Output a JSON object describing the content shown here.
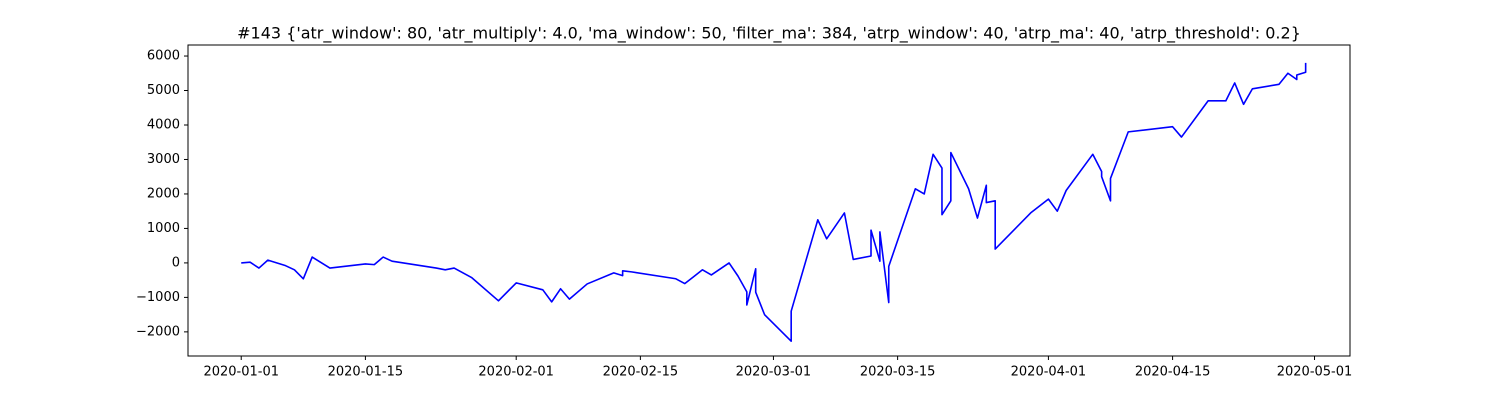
{
  "chart_data": {
    "type": "line",
    "title": "#143 {'atr_window': 80, 'atr_multiply': 4.0, 'ma_window': 50, 'filter_ma': 384, 'atrp_window': 40, 'atrp_ma': 40, 'atrp_threshold': 0.2}",
    "x": [
      "2020-01-01",
      "2020-01-02",
      "2020-01-03",
      "2020-01-04",
      "2020-01-06",
      "2020-01-07",
      "2020-01-08",
      "2020-01-09",
      "2020-01-11",
      "2020-01-15",
      "2020-01-16",
      "2020-01-17",
      "2020-01-18",
      "2020-01-23",
      "2020-01-24",
      "2020-01-25",
      "2020-01-27",
      "2020-01-30",
      "2020-02-01",
      "2020-02-04",
      "2020-02-05",
      "2020-02-06",
      "2020-02-07",
      "2020-02-09",
      "2020-02-12",
      "2020-02-13",
      "2020-02-13",
      "2020-02-14",
      "2020-02-19",
      "2020-02-20",
      "2020-02-21",
      "2020-02-22",
      "2020-02-23",
      "2020-02-25",
      "2020-02-26",
      "2020-02-27",
      "2020-02-27",
      "2020-02-28",
      "2020-02-28",
      "2020-02-29",
      "2020-03-03",
      "2020-03-03",
      "2020-03-06",
      "2020-03-07",
      "2020-03-09",
      "2020-03-10",
      "2020-03-12",
      "2020-03-12",
      "2020-03-13",
      "2020-03-13",
      "2020-03-14",
      "2020-03-14",
      "2020-03-17",
      "2020-03-18",
      "2020-03-19",
      "2020-03-20",
      "2020-03-20",
      "2020-03-21",
      "2020-03-21",
      "2020-03-23",
      "2020-03-24",
      "2020-03-25",
      "2020-03-25",
      "2020-03-26",
      "2020-03-26",
      "2020-03-30",
      "2020-04-01",
      "2020-04-02",
      "2020-04-03",
      "2020-04-06",
      "2020-04-07",
      "2020-04-07",
      "2020-04-08",
      "2020-04-08",
      "2020-04-10",
      "2020-04-15",
      "2020-04-16",
      "2020-04-19",
      "2020-04-21",
      "2020-04-22",
      "2020-04-23",
      "2020-04-24",
      "2020-04-27",
      "2020-04-28",
      "2020-04-29",
      "2020-04-29",
      "2020-04-30",
      "2020-04-30"
    ],
    "series": [
      {
        "color": "#0000ff",
        "values": [
          0,
          20,
          -150,
          80,
          -80,
          -200,
          -460,
          170,
          -150,
          -30,
          -50,
          170,
          50,
          -150,
          -200,
          -150,
          -430,
          -1100,
          -580,
          -780,
          -1130,
          -750,
          -1050,
          -610,
          -290,
          -370,
          -230,
          -260,
          -460,
          -600,
          -400,
          -200,
          -350,
          0,
          -380,
          -840,
          -1220,
          -170,
          -850,
          -1500,
          -2270,
          -1400,
          1250,
          700,
          1450,
          100,
          200,
          950,
          50,
          900,
          -1150,
          -100,
          2150,
          2000,
          3150,
          2750,
          1400,
          1800,
          3200,
          2150,
          1300,
          2250,
          1750,
          1800,
          400,
          1450,
          1850,
          1500,
          2100,
          3150,
          2650,
          2500,
          1800,
          2450,
          3800,
          3950,
          3650,
          4700,
          4700,
          5220,
          4600,
          5050,
          5180,
          5500,
          5320,
          5450,
          5530,
          5800
        ]
      }
    ],
    "xlim": [
      "2019-12-26",
      "2020-05-05"
    ],
    "xticks": [
      "2020-01-01",
      "2020-01-15",
      "2020-02-01",
      "2020-02-15",
      "2020-03-01",
      "2020-03-15",
      "2020-04-01",
      "2020-04-15",
      "2020-05-01"
    ],
    "ylim": [
      -2700,
      6320
    ],
    "yticks": [
      {
        "value": -2000,
        "label": "−2000"
      },
      {
        "value": -1000,
        "label": "−1000"
      },
      0,
      1000,
      2000,
      3000,
      4000,
      5000,
      6000
    ]
  }
}
